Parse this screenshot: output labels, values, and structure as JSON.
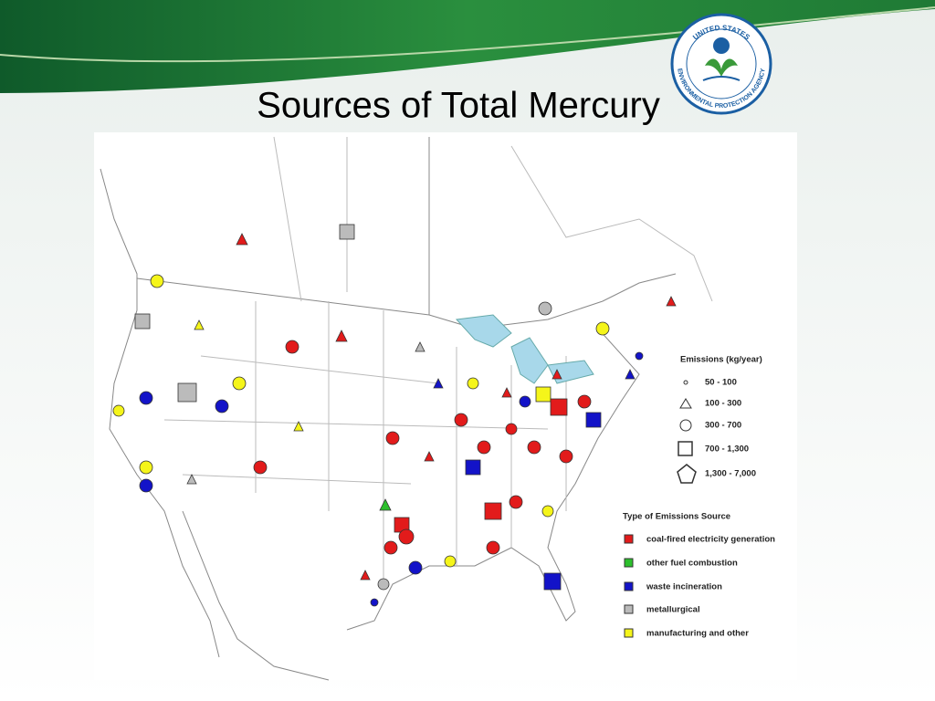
{
  "header": {
    "title": "Sources of Total Mercury"
  },
  "logo": {
    "top": "UNITED STATES",
    "bottom": "ENVIRONMENTAL PROTECTION AGENCY"
  },
  "legend": {
    "size_title": "Emissions (kg/year)",
    "sizes": [
      "50 - 100",
      "100 - 300",
      "300 - 700",
      "700 - 1,300",
      "1,300 - 7,000"
    ],
    "type_title": "Type of Emissions Source",
    "types": [
      "coal-fired electricity generation",
      "other fuel combustion",
      "waste incineration",
      "metallurgical",
      "manufacturing and other"
    ]
  }
}
